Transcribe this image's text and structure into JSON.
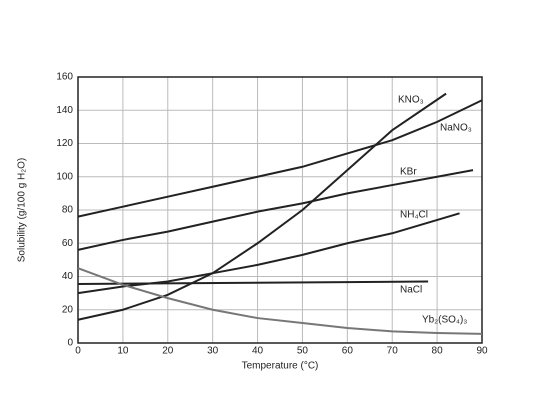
{
  "chart_data": {
    "type": "line",
    "x_label": "Temperature (°C)",
    "y_label": "Solubility (g/100 g H₂O)",
    "xlim": [
      0,
      90
    ],
    "xticks": [
      0,
      10,
      20,
      30,
      40,
      50,
      60,
      70,
      80,
      90
    ],
    "ylim": [
      0,
      160
    ],
    "yticks": [
      0,
      20,
      40,
      60,
      80,
      100,
      120,
      140,
      160
    ],
    "grid": true,
    "series": [
      {
        "name": "KNO₃",
        "color": "#222222",
        "x": [
          0,
          10,
          20,
          30,
          40,
          50,
          60,
          70,
          82
        ],
        "values": [
          14,
          20,
          29,
          42,
          60,
          80,
          104,
          128,
          150
        ]
      },
      {
        "name": "NaNO₃",
        "color": "#222222",
        "x": [
          0,
          10,
          20,
          30,
          40,
          50,
          60,
          70,
          80,
          90
        ],
        "values": [
          76,
          82,
          88,
          94,
          100,
          106,
          114,
          122,
          133,
          146
        ]
      },
      {
        "name": "KBr",
        "color": "#222222",
        "x": [
          0,
          10,
          20,
          30,
          40,
          50,
          60,
          70,
          80,
          88
        ],
        "values": [
          56,
          62,
          67,
          73,
          79,
          84,
          90,
          95,
          100,
          104
        ]
      },
      {
        "name": "NH₄Cl",
        "color": "#222222",
        "x": [
          0,
          10,
          20,
          30,
          40,
          50,
          60,
          70,
          85
        ],
        "values": [
          30,
          34,
          37,
          42,
          47,
          53,
          60,
          66,
          78
        ]
      },
      {
        "name": "NaCl",
        "color": "#222222",
        "x": [
          0,
          78
        ],
        "values": [
          35.5,
          37
        ]
      },
      {
        "name": "Yb₂(SO₄)₃",
        "color": "#777777",
        "x": [
          0,
          10,
          20,
          30,
          40,
          50,
          60,
          70,
          80,
          90
        ],
        "values": [
          45,
          35,
          27,
          20,
          15,
          12,
          9,
          7,
          6,
          5.5
        ]
      }
    ]
  }
}
